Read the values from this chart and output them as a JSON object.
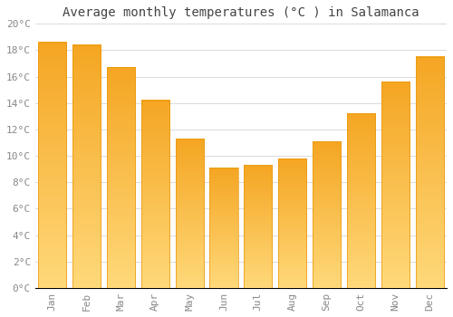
{
  "title": "Average monthly temperatures (°C ) in Salamanca",
  "months": [
    "Jan",
    "Feb",
    "Mar",
    "Apr",
    "May",
    "Jun",
    "Jul",
    "Aug",
    "Sep",
    "Oct",
    "Nov",
    "Dec"
  ],
  "values": [
    18.6,
    18.4,
    16.7,
    14.2,
    11.3,
    9.1,
    9.3,
    9.8,
    11.1,
    13.2,
    15.6,
    17.5
  ],
  "bar_color_top": "#F5A623",
  "bar_color_bottom": "#FFD97A",
  "bar_edge_color": "#E8970A",
  "background_color": "#FFFFFF",
  "grid_color": "#CCCCCC",
  "ylim": [
    0,
    20
  ],
  "yticks": [
    0,
    2,
    4,
    6,
    8,
    10,
    12,
    14,
    16,
    18,
    20
  ],
  "ytick_labels": [
    "0°C",
    "2°C",
    "4°C",
    "6°C",
    "8°C",
    "10°C",
    "12°C",
    "14°C",
    "16°C",
    "18°C",
    "20°C"
  ],
  "title_fontsize": 10,
  "tick_fontsize": 8,
  "tick_color": "#888888",
  "title_color": "#444444",
  "bar_width": 0.82
}
